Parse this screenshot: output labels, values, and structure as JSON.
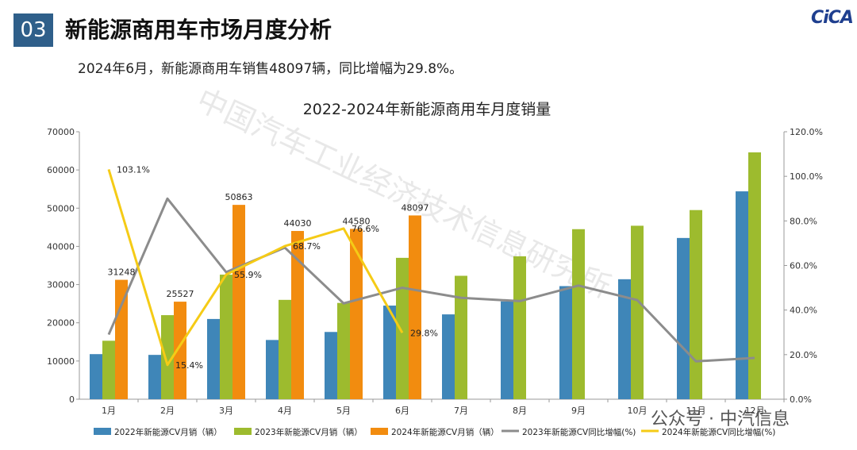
{
  "header": {
    "section_number": "03",
    "title": "新能源商用车市场月度分析",
    "summary": "2024年6月，新能源商用车销售48097辆，同比增幅为29.8%。",
    "logo_text": "CiCA"
  },
  "watermark": {
    "text": "中国汽车工业经济技术信息研究所",
    "footer": "公众号 · 中汽信息"
  },
  "colors": {
    "series_2022": "#3f86b8",
    "series_2023": "#9dbb2e",
    "series_2024": "#f28c0f",
    "line_2023": "#8c8c8c",
    "line_2024": "#f5cb16",
    "badge": "#2f5f8a"
  },
  "chart_data": {
    "type": "bar",
    "title": "2022-2024年新能源商用车月度销量",
    "categories": [
      "1月",
      "2月",
      "3月",
      "4月",
      "5月",
      "6月",
      "7月",
      "8月",
      "9月",
      "10月",
      "11月",
      "12月"
    ],
    "ylim": [
      0,
      70000
    ],
    "y_ticks": [
      "0",
      "10000",
      "20000",
      "30000",
      "40000",
      "50000",
      "60000",
      "70000"
    ],
    "y2lim": [
      0,
      120
    ],
    "y2_ticks": [
      "0.0%",
      "20.0%",
      "40.0%",
      "60.0%",
      "80.0%",
      "100.0%",
      "120.0%"
    ],
    "grid": false,
    "legend_position": "bottom",
    "series": [
      {
        "name": "2022年新能源CV月销（辆）",
        "kind": "bar",
        "values": [
          11800,
          11600,
          21000,
          15500,
          17600,
          24500,
          22200,
          25600,
          29600,
          31400,
          42200,
          54400
        ]
      },
      {
        "name": "2023年新能源CV月销（辆）",
        "kind": "bar",
        "values": [
          15300,
          22000,
          32600,
          26000,
          25200,
          37000,
          32300,
          37400,
          44500,
          45400,
          49500,
          64600
        ]
      },
      {
        "name": "2024年新能源CV月销（辆）",
        "kind": "bar",
        "values": [
          31248,
          25527,
          50863,
          44030,
          44580,
          48097,
          null,
          null,
          null,
          null,
          null,
          null
        ],
        "labels": [
          "31248",
          "25527",
          "50863",
          "44030",
          "44580",
          "48097",
          "",
          "",
          "",
          "",
          "",
          ""
        ]
      },
      {
        "name": "2023年新能源CV同比增幅(%)",
        "kind": "line",
        "values": [
          29,
          90,
          57,
          68,
          43,
          50,
          45.5,
          44,
          51,
          44.5,
          17,
          18.5
        ]
      },
      {
        "name": "2024年新能源CV同比增幅(%)",
        "kind": "line",
        "values": [
          103.1,
          15.4,
          55.9,
          68.7,
          76.6,
          29.8,
          null,
          null,
          null,
          null,
          null,
          null
        ],
        "labels": [
          "103.1%",
          "15.4%",
          "55.9%",
          "68.7%",
          "76.6%",
          "29.8%",
          "",
          "",
          "",
          "",
          "",
          ""
        ]
      }
    ]
  }
}
